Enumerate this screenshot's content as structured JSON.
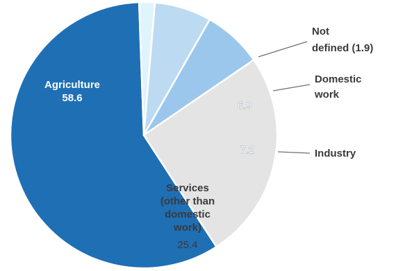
{
  "chart_data": {
    "type": "pie",
    "title": "",
    "unit": "",
    "slices": [
      {
        "key": "agriculture",
        "label_lines": [
          "Agriculture"
        ],
        "value": 58.6,
        "value_text": "58.6",
        "color": "#1f6fb5",
        "label_style": "inside-dark"
      },
      {
        "key": "not-defined",
        "label_lines": [
          "Not",
          "defined (1.9)"
        ],
        "value": 1.9,
        "value_text": "",
        "color": "#dff4fb",
        "label_style": "outside"
      },
      {
        "key": "domestic-work",
        "label_lines": [
          "Domestic",
          "work"
        ],
        "value": 6.9,
        "value_text": "6.9",
        "color": "#bcdaf2",
        "label_style": "outside"
      },
      {
        "key": "industry",
        "label_lines": [
          "Industry"
        ],
        "value": 7.2,
        "value_text": "7.2",
        "color": "#9cc7ed",
        "label_style": "outside"
      },
      {
        "key": "services",
        "label_lines": [
          "Services",
          "(other than",
          "domestic",
          "work)"
        ],
        "value": 25.4,
        "value_text": "25.4",
        "color": "#e4e4e4",
        "label_style": "inside-light"
      }
    ]
  }
}
